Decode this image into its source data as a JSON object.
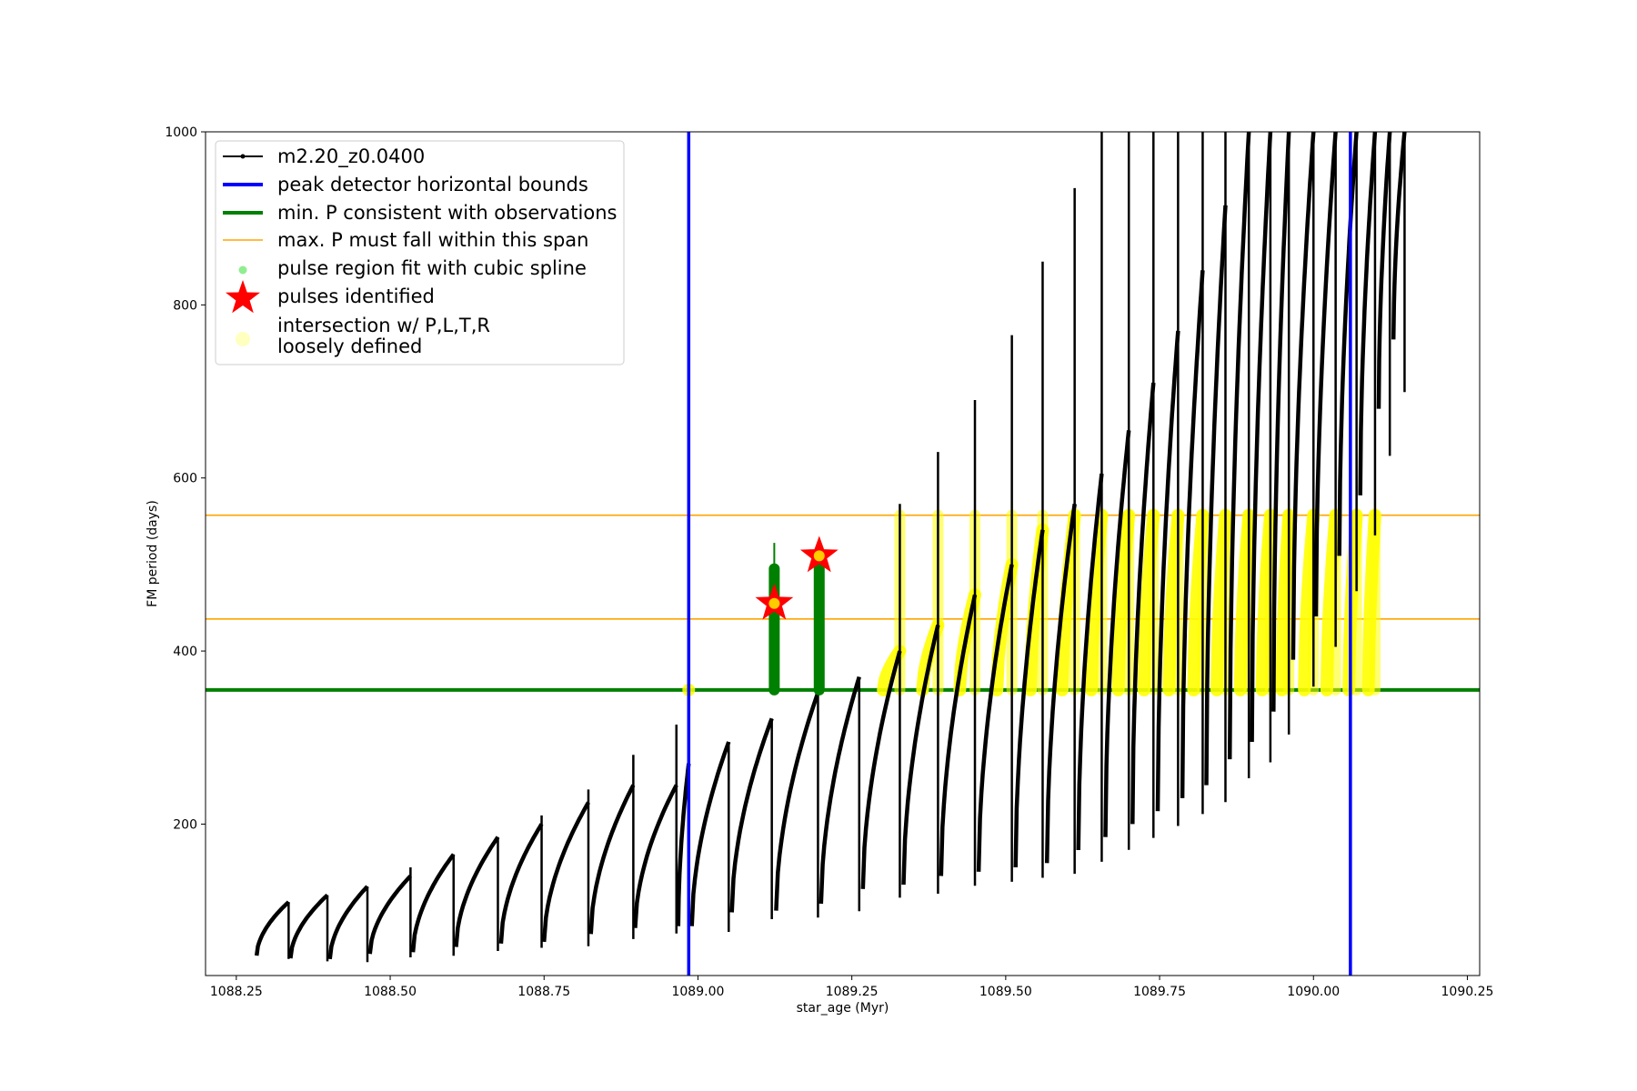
{
  "chart_data": {
    "type": "line",
    "title": "",
    "xlabel": "star_age (Myr)",
    "ylabel": "FM period (days)",
    "xlim": [
      1088.2,
      1090.27
    ],
    "ylim": [
      25,
      1000
    ],
    "xticks": [
      {
        "value": 1088.25,
        "label": "1088.25"
      },
      {
        "value": 1088.5,
        "label": "1088.50"
      },
      {
        "value": 1088.75,
        "label": "1088.75"
      },
      {
        "value": 1089.0,
        "label": "1089.00"
      },
      {
        "value": 1089.25,
        "label": "1089.25"
      },
      {
        "value": 1089.5,
        "label": "1089.50"
      },
      {
        "value": 1089.75,
        "label": "1089.75"
      },
      {
        "value": 1090.0,
        "label": "1090.00"
      },
      {
        "value": 1090.25,
        "label": "1090.25"
      }
    ],
    "yticks": [
      {
        "value": 200,
        "label": "200"
      },
      {
        "value": 400,
        "label": "400"
      },
      {
        "value": 600,
        "label": "600"
      },
      {
        "value": 800,
        "label": "800"
      },
      {
        "value": 1000,
        "label": "1000"
      }
    ],
    "legend_position": "upper-left",
    "legend": [
      {
        "key": "model",
        "label": "m2.20_z0.0400"
      },
      {
        "key": "bounds",
        "label": "peak detector horizontal bounds"
      },
      {
        "key": "minp",
        "label": "min. P consistent with observations"
      },
      {
        "key": "maxp",
        "label": "max. P must fall within this span"
      },
      {
        "key": "spline",
        "label": "pulse region fit with cubic spline"
      },
      {
        "key": "pulses",
        "label": "pulses identified"
      },
      {
        "key": "intersect",
        "label": "intersection w/ P,L,T,R",
        "label2": "loosely defined"
      }
    ],
    "colors": {
      "model": "#000000",
      "bounds": "#0000ff",
      "minp": "#008000",
      "maxp": "#ffa500",
      "spline": "#90ee90",
      "pulses": "#ff0000",
      "intersect": "#ffff00",
      "intersect_legend": "#ffffc0"
    },
    "vertical_lines": [
      1088.985,
      1090.06
    ],
    "min_period": 355,
    "max_period_span": [
      437,
      557
    ],
    "pulses_identified": [
      {
        "age": 1089.124,
        "period": 455
      },
      {
        "age": 1089.197,
        "period": 510
      }
    ],
    "pulse_cycles": [
      {
        "start": 1088.283,
        "end": 1088.335,
        "min": 48,
        "peak": 110,
        "spike": 110
      },
      {
        "start": 1088.338,
        "end": 1088.398,
        "min": 45,
        "peak": 118,
        "spike": 118
      },
      {
        "start": 1088.402,
        "end": 1088.463,
        "min": 44,
        "peak": 128,
        "spike": 128
      },
      {
        "start": 1088.467,
        "end": 1088.533,
        "min": 50,
        "peak": 140,
        "spike": 150
      },
      {
        "start": 1088.537,
        "end": 1088.603,
        "min": 52,
        "peak": 165,
        "spike": 165
      },
      {
        "start": 1088.607,
        "end": 1088.675,
        "min": 58,
        "peak": 185,
        "spike": 185
      },
      {
        "start": 1088.68,
        "end": 1088.746,
        "min": 62,
        "peak": 200,
        "spike": 210
      },
      {
        "start": 1088.75,
        "end": 1088.822,
        "min": 64,
        "peak": 225,
        "spike": 240
      },
      {
        "start": 1088.826,
        "end": 1088.895,
        "min": 73,
        "peak": 245,
        "spike": 280
      },
      {
        "start": 1088.898,
        "end": 1088.965,
        "min": 80,
        "peak": 245,
        "spike": 315
      },
      {
        "start": 1088.968,
        "end": 1088.985,
        "min": 82,
        "peak": 270,
        "spike": 270
      },
      {
        "start": 1088.99,
        "end": 1089.05,
        "min": 82,
        "peak": 295,
        "spike": 295
      },
      {
        "start": 1089.055,
        "end": 1089.12,
        "min": 98,
        "peak": 322,
        "spike": 322
      },
      {
        "start": 1089.127,
        "end": 1089.195,
        "min": 100,
        "peak": 352,
        "spike": 352
      },
      {
        "start": 1089.2,
        "end": 1089.262,
        "min": 108,
        "peak": 370,
        "spike": 370
      },
      {
        "start": 1089.268,
        "end": 1089.328,
        "min": 125,
        "peak": 400,
        "spike": 570
      },
      {
        "start": 1089.334,
        "end": 1089.39,
        "min": 130,
        "peak": 430,
        "spike": 630
      },
      {
        "start": 1089.395,
        "end": 1089.45,
        "min": 140,
        "peak": 465,
        "spike": 690
      },
      {
        "start": 1089.456,
        "end": 1089.51,
        "min": 145,
        "peak": 500,
        "spike": 765
      },
      {
        "start": 1089.516,
        "end": 1089.56,
        "min": 150,
        "peak": 540,
        "spike": 850
      },
      {
        "start": 1089.567,
        "end": 1089.612,
        "min": 155,
        "peak": 570,
        "spike": 935
      },
      {
        "start": 1089.618,
        "end": 1089.656,
        "min": 170,
        "peak": 605,
        "spike": 1000
      },
      {
        "start": 1089.662,
        "end": 1089.7,
        "min": 185,
        "peak": 655,
        "spike": 1000
      },
      {
        "start": 1089.706,
        "end": 1089.74,
        "min": 200,
        "peak": 710,
        "spike": 1000
      },
      {
        "start": 1089.747,
        "end": 1089.78,
        "min": 215,
        "peak": 770,
        "spike": 1000
      },
      {
        "start": 1089.787,
        "end": 1089.82,
        "min": 230,
        "peak": 840,
        "spike": 1000
      },
      {
        "start": 1089.826,
        "end": 1089.857,
        "min": 245,
        "peak": 915,
        "spike": 1000
      },
      {
        "start": 1089.864,
        "end": 1089.895,
        "min": 275,
        "peak": 1000,
        "spike": 1000
      },
      {
        "start": 1089.9,
        "end": 1089.93,
        "min": 295,
        "peak": 1000,
        "spike": 1000
      },
      {
        "start": 1089.935,
        "end": 1089.96,
        "min": 330,
        "peak": 1000,
        "spike": 1000
      },
      {
        "start": 1089.967,
        "end": 1090.0,
        "min": 390,
        "peak": 1000,
        "spike": 1000
      },
      {
        "start": 1090.004,
        "end": 1090.036,
        "min": 440,
        "peak": 1000,
        "spike": 1000
      },
      {
        "start": 1090.042,
        "end": 1090.07,
        "min": 510,
        "peak": 1000,
        "spike": 1000
      },
      {
        "start": 1090.076,
        "end": 1090.1,
        "min": 580,
        "peak": 1000,
        "spike": 1000
      },
      {
        "start": 1090.106,
        "end": 1090.124,
        "min": 680,
        "peak": 1000,
        "spike": 1000
      },
      {
        "start": 1090.13,
        "end": 1090.148,
        "min": 760,
        "peak": 1000,
        "spike": 1000
      }
    ]
  }
}
